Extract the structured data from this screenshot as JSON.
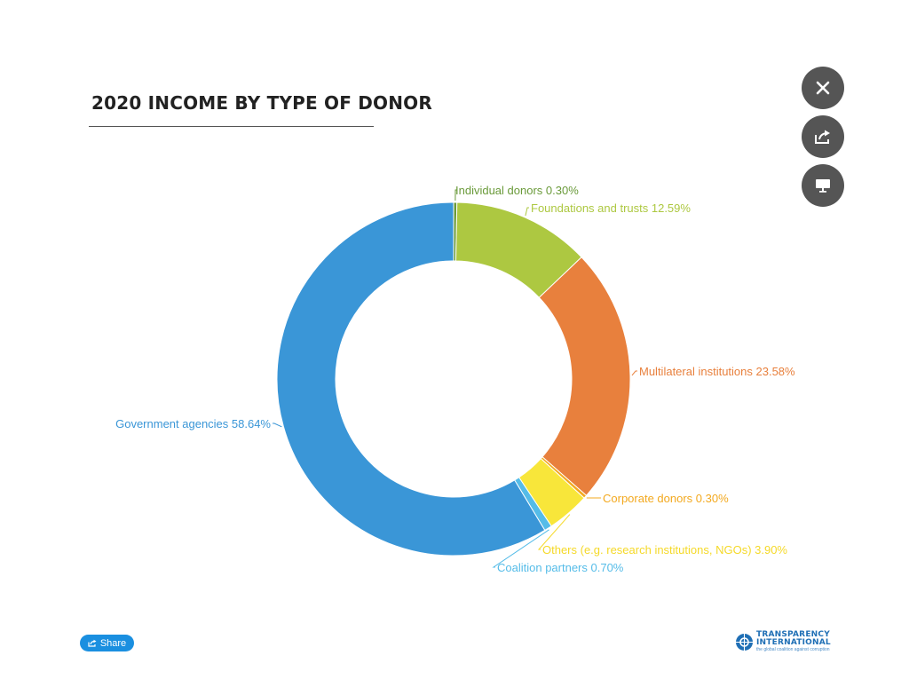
{
  "chart_title": "2020 INCOME BY TYPE OF DONOR",
  "controls": {
    "share_label": "Share"
  },
  "icons": {
    "close": "close-icon",
    "share": "share-icon",
    "present": "monitor-icon",
    "share_small": "share-icon"
  },
  "branding": {
    "name_line1": "TRANSPARENCY",
    "name_line2": "INTERNATIONAL",
    "tagline": "the global coalition against corruption"
  },
  "chart_data": {
    "type": "pie",
    "variant": "donut",
    "title": "2020 INCOME BY TYPE OF DONOR",
    "slices": [
      {
        "label": "Individual donors 0.30%",
        "name": "Individual donors",
        "value": 0.3,
        "color": "#6a9a3a"
      },
      {
        "label": "Foundations and trusts 12.59%",
        "name": "Foundations and trusts",
        "value": 12.59,
        "color": "#adc841"
      },
      {
        "label": "Multilateral institutions 23.58%",
        "name": "Multilateral institutions",
        "value": 23.58,
        "color": "#e8803d"
      },
      {
        "label": "Corporate donors 0.30%",
        "name": "Corporate donors",
        "value": 0.3,
        "color": "#f3a91f"
      },
      {
        "label": "Others (e.g. research institutions, NGOs) 3.90%",
        "name": "Others (e.g. research institutions, NGOs)",
        "value": 3.9,
        "color": "#f8e63a"
      },
      {
        "label": "Coalition partners 0.70%",
        "name": "Coalition partners",
        "value": 0.7,
        "color": "#55bce8"
      },
      {
        "label": "Government agencies 58.64%",
        "name": "Government agencies",
        "value": 58.64,
        "color": "#3a96d7"
      }
    ],
    "label_colors": [
      "#6a9a3a",
      "#adc841",
      "#e8803d",
      "#f3a91f",
      "#f5d928",
      "#55bce8",
      "#3a96d7"
    ]
  }
}
